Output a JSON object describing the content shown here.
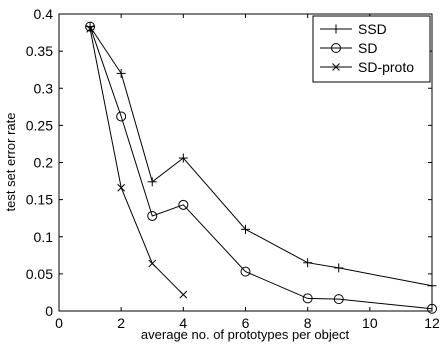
{
  "chart_data": {
    "type": "line",
    "xlabel": "average no. of prototypes per object",
    "ylabel": "test set error rate",
    "xlim": [
      0,
      12
    ],
    "ylim": [
      0,
      0.4
    ],
    "xticks": [
      0,
      2,
      4,
      6,
      8,
      10,
      12
    ],
    "yticks": [
      0,
      0.05,
      0.1,
      0.15,
      0.2,
      0.25,
      0.3,
      0.35,
      0.4
    ],
    "xtick_labels": [
      "0",
      "2",
      "4",
      "6",
      "8",
      "10",
      "12"
    ],
    "ytick_labels": [
      "0",
      "0.05",
      "0.1",
      "0.15",
      "0.2",
      "0.25",
      "0.3",
      "0.35",
      "0.4"
    ],
    "grid": false,
    "legend_position": "top-right",
    "series": [
      {
        "name": "SSD",
        "marker": "plus",
        "x": [
          1,
          2,
          3,
          4,
          6,
          8,
          9,
          12
        ],
        "y": [
          0.383,
          0.32,
          0.174,
          0.206,
          0.11,
          0.065,
          0.058,
          0.034
        ]
      },
      {
        "name": "SD",
        "marker": "circle",
        "x": [
          1,
          2,
          3,
          4,
          6,
          8,
          9,
          12
        ],
        "y": [
          0.383,
          0.262,
          0.128,
          0.143,
          0.053,
          0.017,
          0.016,
          0.003
        ]
      },
      {
        "name": "SD-proto",
        "marker": "cross",
        "x": [
          1,
          2,
          3,
          4
        ],
        "y": [
          0.38,
          0.166,
          0.064,
          0.022
        ]
      }
    ]
  }
}
